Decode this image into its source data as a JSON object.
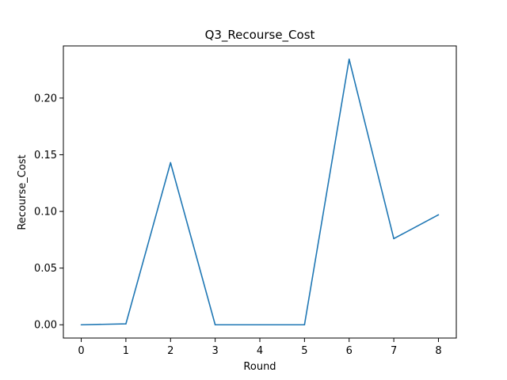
{
  "chart_data": {
    "type": "line",
    "title": "Q3_Recourse_Cost",
    "xlabel": "Round",
    "ylabel": "Recourse_Cost",
    "x": [
      0,
      1,
      2,
      3,
      4,
      5,
      6,
      7,
      8
    ],
    "series": [
      {
        "values": [
          0.0,
          0.0008,
          0.143,
          0.0,
          0.0,
          0.0,
          0.2343,
          0.076,
          0.097
        ],
        "color": "#1f77b4"
      }
    ],
    "xlim": [
      -0.4,
      8.4
    ],
    "ylim": [
      -0.0117,
      0.246
    ],
    "xticks": [
      "0",
      "1",
      "2",
      "3",
      "4",
      "5",
      "6",
      "7",
      "8"
    ],
    "yticks": [
      "0.00",
      "0.05",
      "0.10",
      "0.15",
      "0.20"
    ],
    "grid": false,
    "legend": "none"
  }
}
